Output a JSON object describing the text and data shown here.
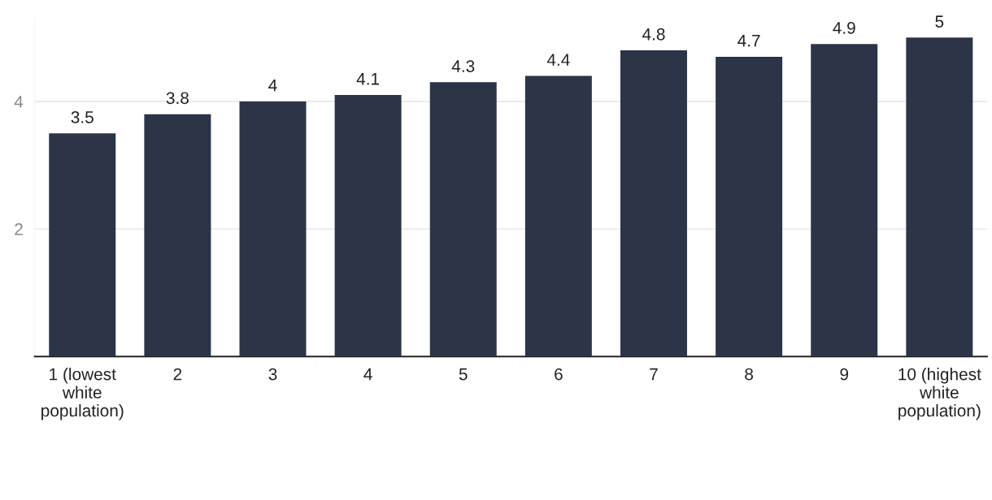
{
  "chart_data": {
    "type": "bar",
    "categories": [
      "1 (lowest\nwhite\npopulation)",
      "2",
      "3",
      "4",
      "5",
      "6",
      "7",
      "8",
      "9",
      "10 (highest\nwhite\npopulation)"
    ],
    "values": [
      3.5,
      3.8,
      4,
      4.1,
      4.3,
      4.4,
      4.8,
      4.7,
      4.9,
      5
    ],
    "color": "#2c3447",
    "ylim": [
      0,
      5.3
    ],
    "yticks": [
      2,
      4
    ],
    "grid": "y",
    "data_labels": true
  }
}
